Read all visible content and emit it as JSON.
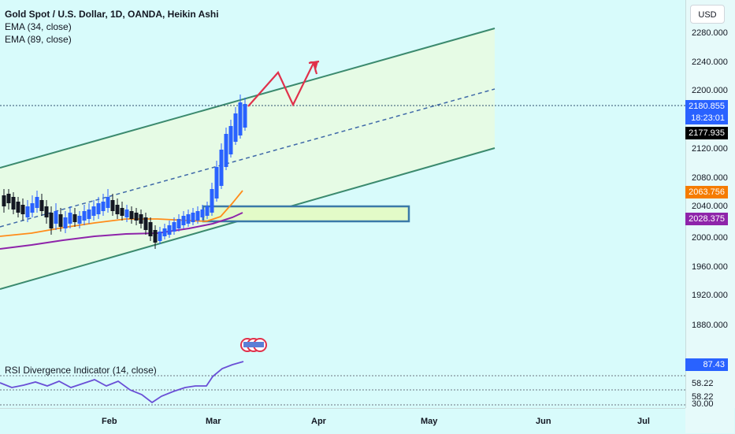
{
  "legend": {
    "title": "Gold Spot / U.S. Dollar, 1D, OANDA, Heikin Ashi",
    "ema1": "EMA (34, close)",
    "ema2": "EMA (89, close)"
  },
  "rsi_label": "RSI Divergence Indicator (14, close)",
  "currency_button": "USD",
  "price_ticks": [
    "2280.000",
    "2240.000",
    "2200.000",
    "2120.000",
    "2080.000",
    "2040.000",
    "2000.000",
    "1960.000",
    "1920.000",
    "1880.000"
  ],
  "badges": {
    "price": "2180.855",
    "countdown": "18:23:01",
    "last": "2177.935",
    "ema34": "2063.756",
    "ema89": "2028.375",
    "rsi": "87.43",
    "rsi_level1": "58.22",
    "rsi_level2": "58.22",
    "rsi_level3": "30.00"
  },
  "time_labels": [
    "Feb",
    "Mar",
    "Apr",
    "May",
    "Jun",
    "Jul"
  ],
  "colors": {
    "bull": "#2962ff",
    "bear": "#131722",
    "channel": "#3b8a6e",
    "ema34": "#ff8c1a",
    "ema89": "#8e24aa",
    "arrow": "#e0314b",
    "rsi_line": "#6a4fd6",
    "price_badge": "#2962ff",
    "last_badge": "#000000",
    "ema34_badge": "#f57c00",
    "ema89_badge": "#8e24aa"
  }
}
